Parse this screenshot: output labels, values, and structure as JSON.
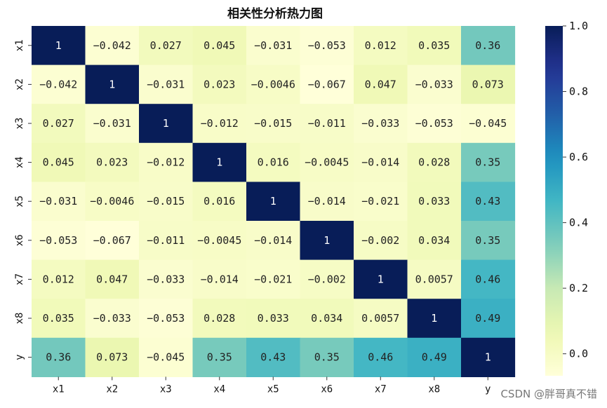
{
  "chart_data": {
    "type": "heatmap",
    "title": "相关性分析热力图",
    "rows": [
      "x1",
      "x2",
      "x3",
      "x4",
      "x5",
      "x6",
      "x7",
      "x8",
      "y"
    ],
    "cols": [
      "x1",
      "x2",
      "x3",
      "x4",
      "x5",
      "x6",
      "x7",
      "x8",
      "y"
    ],
    "values": [
      [
        1,
        -0.042,
        0.027,
        0.045,
        -0.031,
        -0.053,
        0.012,
        0.035,
        0.36
      ],
      [
        -0.042,
        1,
        -0.031,
        0.023,
        -0.0046,
        -0.067,
        0.047,
        -0.033,
        0.073
      ],
      [
        0.027,
        -0.031,
        1,
        -0.012,
        -0.015,
        -0.011,
        -0.033,
        -0.053,
        -0.045
      ],
      [
        0.045,
        0.023,
        -0.012,
        1,
        0.016,
        -0.0045,
        -0.014,
        0.028,
        0.35
      ],
      [
        -0.031,
        -0.0046,
        -0.015,
        0.016,
        1,
        -0.014,
        -0.021,
        0.033,
        0.43
      ],
      [
        -0.053,
        -0.067,
        -0.011,
        -0.0045,
        -0.014,
        1,
        -0.002,
        0.034,
        0.35
      ],
      [
        0.012,
        0.047,
        -0.033,
        -0.014,
        -0.021,
        -0.002,
        1,
        0.0057,
        0.46
      ],
      [
        0.035,
        -0.033,
        -0.053,
        0.028,
        0.033,
        0.034,
        0.0057,
        1,
        0.49
      ],
      [
        0.36,
        0.073,
        -0.045,
        0.35,
        0.43,
        0.35,
        0.46,
        0.49,
        1
      ]
    ],
    "colormap": "YlGnBu",
    "vmin": -0.067,
    "vmax": 1.0,
    "colorbar_ticks": [
      0.0,
      0.2,
      0.4,
      0.6,
      0.8,
      1.0
    ],
    "colorbar_tick_labels": [
      "0.0",
      "0.2",
      "0.4",
      "0.6",
      "0.8",
      "1.0"
    ],
    "legend_position": "right"
  },
  "watermark": "CSDN @胖哥真不错"
}
